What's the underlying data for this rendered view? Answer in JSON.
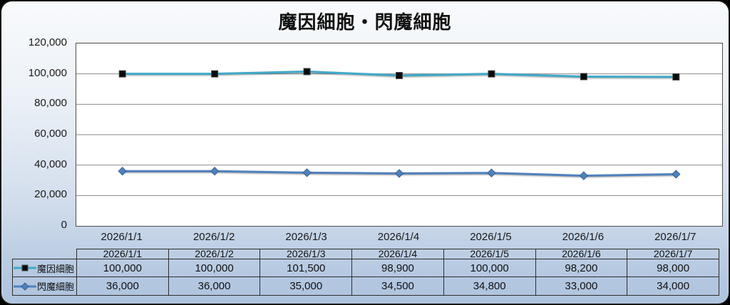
{
  "title": "魔因細胞・閃魔細胞",
  "chart_data": {
    "type": "line",
    "title": "魔因細胞・閃魔細胞",
    "categories": [
      "2026/1/1",
      "2026/1/2",
      "2026/1/3",
      "2026/1/4",
      "2026/1/5",
      "2026/1/6",
      "2026/1/7"
    ],
    "series": [
      {
        "name": "魔因細胞",
        "values": [
          100000,
          100000,
          101500,
          98900,
          100000,
          98200,
          98000
        ],
        "line_color": "#3fa9c9",
        "marker": "square",
        "marker_color": "#0b0b0b",
        "marker_stroke": "#4a4a4a"
      },
      {
        "name": "閃魔細胞",
        "values": [
          36000,
          36000,
          35000,
          34500,
          34800,
          33000,
          34000
        ],
        "line_color": "#4f81bd",
        "marker": "diamond",
        "marker_color": "#4f81bd",
        "marker_stroke": "#38618f"
      }
    ],
    "xlabel": "",
    "ylabel": "",
    "ylim": [
      0,
      120000
    ],
    "ytick_interval": 20000,
    "ytick_labels": [
      "0",
      "20,000",
      "40,000",
      "60,000",
      "80,000",
      "100,000",
      "120,000"
    ],
    "grid": true,
    "legend_position": "table-left",
    "colors": {
      "plot_bg": "#ffffff",
      "gridline": "#8c8c8c",
      "plot_border": "#4d4d4d",
      "panel_top": "#f8fafc",
      "panel_bottom": "#aec3dd",
      "table_border": "#2e2e2e",
      "text": "#1a1a1a"
    }
  },
  "table": {
    "corner_label": "",
    "columns": [
      "2026/1/1",
      "2026/1/2",
      "2026/1/3",
      "2026/1/4",
      "2026/1/5",
      "2026/1/6",
      "2026/1/7"
    ],
    "rows": [
      {
        "label": "魔因細胞",
        "values": [
          "100,000",
          "100,000",
          "101,500",
          "98,900",
          "100,000",
          "98,200",
          "98,000"
        ]
      },
      {
        "label": "閃魔細胞",
        "values": [
          "36,000",
          "36,000",
          "35,000",
          "34,500",
          "34,800",
          "33,000",
          "34,000"
        ]
      }
    ]
  }
}
